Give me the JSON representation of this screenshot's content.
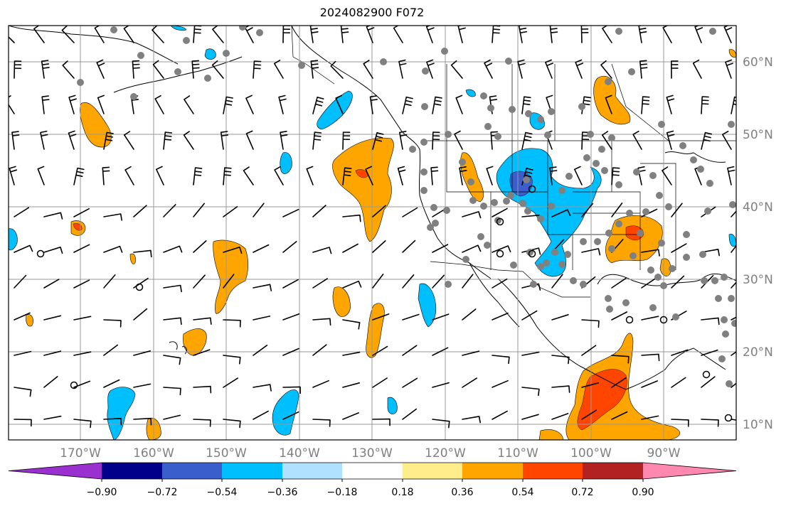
{
  "title": "2024082900 F072",
  "lon_labels": [
    "170°W",
    "160°W",
    "150°W",
    "140°W",
    "130°W",
    "120°W",
    "110°W",
    "100°W",
    "90°W"
  ],
  "lat_labels": [
    "60°N",
    "50°N",
    "40°N",
    "30°N",
    "20°N",
    "10°N"
  ],
  "colorbar": {
    "tick_labels": [
      "−0.90",
      "−0.72",
      "−0.54",
      "−0.36",
      "−0.18",
      "0.18",
      "0.36",
      "0.54",
      "0.72",
      "0.90"
    ],
    "colors": [
      "#9b30d0",
      "#00008b",
      "#3a5fcd",
      "#00bfff",
      "#b0e2ff",
      "#ffffff",
      "#ffec8b",
      "#ffa500",
      "#ff4500",
      "#b22222",
      "#ff88b0"
    ]
  },
  "fill_colors": {
    "orange": "#ffa500",
    "red_orange": "#ff4500",
    "deep_sky": "#00bfff",
    "royal_blue": "#3a5fcd",
    "light_blue": "#b0e2ff",
    "observation_dot": "#808080"
  }
}
